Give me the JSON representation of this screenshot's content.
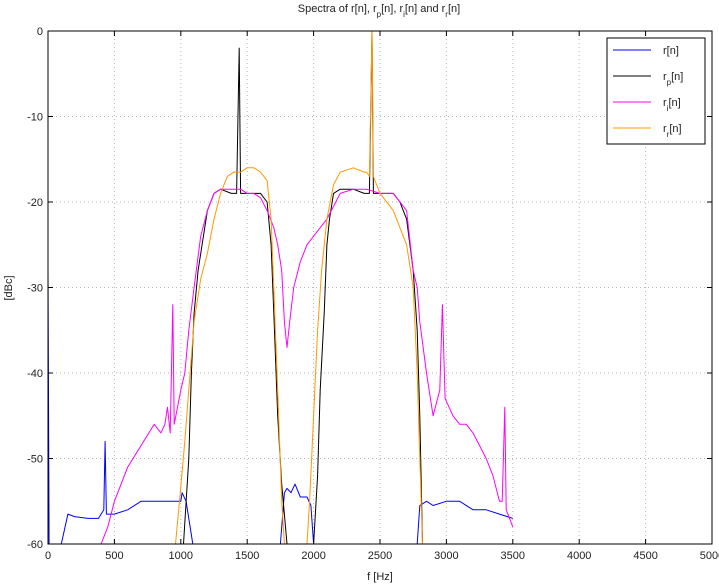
{
  "chart_data": {
    "type": "line",
    "title": "Spectra of r[n], r_p[n], r_i[n] and r_r[n]",
    "xlabel": "f [Hz]",
    "ylabel": "[dBc]",
    "xlim": [
      0,
      5000
    ],
    "ylim": [
      -60,
      0
    ],
    "xticks": [
      0,
      500,
      1000,
      1500,
      2000,
      2500,
      3000,
      3500,
      4000,
      4500,
      5000
    ],
    "yticks": [
      0,
      -10,
      -20,
      -30,
      -40,
      -50,
      -60
    ],
    "grid": true,
    "legend_position": "top-right",
    "series": [
      {
        "name": "r[n]",
        "color": "#0000ff",
        "points": [
          [
            0,
            -28
          ],
          [
            8,
            -60
          ],
          [
            100,
            -60
          ],
          [
            150,
            -56.5
          ],
          [
            200,
            -56.8
          ],
          [
            300,
            -57
          ],
          [
            380,
            -57
          ],
          [
            420,
            -56
          ],
          [
            430,
            -48
          ],
          [
            440,
            -56.5
          ],
          [
            500,
            -56.5
          ],
          [
            600,
            -56
          ],
          [
            700,
            -55
          ],
          [
            800,
            -55
          ],
          [
            900,
            -55
          ],
          [
            960,
            -55
          ],
          [
            1000,
            -55
          ],
          [
            1010,
            -54
          ],
          [
            1040,
            -55
          ],
          [
            1090,
            -60
          ],
          [
            1750,
            -60
          ],
          [
            1780,
            -54
          ],
          [
            1800,
            -53.5
          ],
          [
            1830,
            -54
          ],
          [
            1860,
            -53
          ],
          [
            1900,
            -54.5
          ],
          [
            1950,
            -54.5
          ],
          [
            1980,
            -55.5
          ],
          [
            2000,
            -60
          ],
          [
            2780,
            -60
          ],
          [
            2800,
            -55.5
          ],
          [
            2850,
            -55
          ],
          [
            2900,
            -55.5
          ],
          [
            3000,
            -55
          ],
          [
            3100,
            -55
          ],
          [
            3200,
            -56
          ],
          [
            3300,
            -56
          ],
          [
            3400,
            -56.5
          ],
          [
            3500,
            -57
          ]
        ]
      },
      {
        "name": "r_p[n]",
        "color": "#000000",
        "points": [
          [
            1020,
            -60
          ],
          [
            1060,
            -50
          ],
          [
            1080,
            -40
          ],
          [
            1100,
            -33
          ],
          [
            1130,
            -28
          ],
          [
            1200,
            -21
          ],
          [
            1250,
            -19
          ],
          [
            1300,
            -18.5
          ],
          [
            1380,
            -19
          ],
          [
            1420,
            -19
          ],
          [
            1440,
            -2
          ],
          [
            1450,
            -19
          ],
          [
            1500,
            -19
          ],
          [
            1550,
            -19
          ],
          [
            1600,
            -19
          ],
          [
            1650,
            -20
          ],
          [
            1680,
            -25
          ],
          [
            1700,
            -33
          ],
          [
            1730,
            -45
          ],
          [
            1760,
            -53
          ],
          [
            1800,
            -60
          ],
          [
            2000,
            -60
          ],
          [
            2030,
            -52
          ],
          [
            2050,
            -42
          ],
          [
            2080,
            -33
          ],
          [
            2100,
            -25
          ],
          [
            2120,
            -22
          ],
          [
            2150,
            -19
          ],
          [
            2200,
            -18.5
          ],
          [
            2300,
            -18.5
          ],
          [
            2380,
            -19
          ],
          [
            2420,
            -19
          ],
          [
            2440,
            0
          ],
          [
            2450,
            -19
          ],
          [
            2500,
            -19
          ],
          [
            2600,
            -19
          ],
          [
            2650,
            -20
          ],
          [
            2700,
            -22
          ],
          [
            2750,
            -28
          ],
          [
            2780,
            -35
          ],
          [
            2800,
            -45
          ],
          [
            2820,
            -60
          ]
        ]
      },
      {
        "name": "r_i[n]",
        "color": "#ff00ff",
        "points": [
          [
            400,
            -60
          ],
          [
            450,
            -58
          ],
          [
            500,
            -55
          ],
          [
            600,
            -51
          ],
          [
            700,
            -48.5
          ],
          [
            800,
            -46
          ],
          [
            850,
            -47
          ],
          [
            880,
            -46
          ],
          [
            900,
            -44
          ],
          [
            920,
            -47
          ],
          [
            940,
            -32
          ],
          [
            950,
            -46
          ],
          [
            1000,
            -42
          ],
          [
            1030,
            -40
          ],
          [
            1060,
            -35
          ],
          [
            1100,
            -30
          ],
          [
            1150,
            -24
          ],
          [
            1200,
            -21
          ],
          [
            1250,
            -19
          ],
          [
            1300,
            -18.5
          ],
          [
            1400,
            -18.5
          ],
          [
            1450,
            -18.5
          ],
          [
            1500,
            -19
          ],
          [
            1550,
            -19
          ],
          [
            1600,
            -19.5
          ],
          [
            1650,
            -21
          ],
          [
            1700,
            -23
          ],
          [
            1730,
            -25
          ],
          [
            1760,
            -28
          ],
          [
            1780,
            -34
          ],
          [
            1800,
            -37
          ],
          [
            1820,
            -34
          ],
          [
            1850,
            -30
          ],
          [
            1900,
            -27
          ],
          [
            1950,
            -25
          ],
          [
            2000,
            -24
          ],
          [
            2100,
            -22
          ],
          [
            2200,
            -19
          ],
          [
            2300,
            -18.5
          ],
          [
            2400,
            -18.5
          ],
          [
            2500,
            -19
          ],
          [
            2600,
            -19
          ],
          [
            2700,
            -21
          ],
          [
            2750,
            -28
          ],
          [
            2780,
            -30
          ],
          [
            2800,
            -34
          ],
          [
            2850,
            -40
          ],
          [
            2900,
            -45
          ],
          [
            2950,
            -42
          ],
          [
            2970,
            -32
          ],
          [
            2990,
            -43
          ],
          [
            3050,
            -45
          ],
          [
            3100,
            -46
          ],
          [
            3150,
            -46
          ],
          [
            3200,
            -47
          ],
          [
            3300,
            -50
          ],
          [
            3350,
            -52
          ],
          [
            3400,
            -55
          ],
          [
            3420,
            -55
          ],
          [
            3440,
            -44
          ],
          [
            3450,
            -56
          ],
          [
            3500,
            -58
          ]
        ]
      },
      {
        "name": "r_r[n]",
        "color": "#ff9900",
        "points": [
          [
            960,
            -60
          ],
          [
            990,
            -55
          ],
          [
            1030,
            -48
          ],
          [
            1070,
            -40
          ],
          [
            1100,
            -34
          ],
          [
            1150,
            -29
          ],
          [
            1200,
            -26
          ],
          [
            1250,
            -22
          ],
          [
            1300,
            -19
          ],
          [
            1350,
            -17
          ],
          [
            1400,
            -16.5
          ],
          [
            1440,
            -16.5
          ],
          [
            1450,
            -16.5
          ],
          [
            1500,
            -16
          ],
          [
            1550,
            -16
          ],
          [
            1600,
            -16.5
          ],
          [
            1650,
            -17.5
          ],
          [
            1680,
            -22
          ],
          [
            1700,
            -30
          ],
          [
            1730,
            -42
          ],
          [
            1760,
            -55
          ],
          [
            1780,
            -60
          ],
          [
            1950,
            -60
          ],
          [
            1970,
            -55
          ],
          [
            2000,
            -45
          ],
          [
            2030,
            -35
          ],
          [
            2060,
            -28
          ],
          [
            2100,
            -22
          ],
          [
            2150,
            -18
          ],
          [
            2200,
            -16.5
          ],
          [
            2300,
            -16
          ],
          [
            2380,
            -16.5
          ],
          [
            2400,
            -16.5
          ],
          [
            2420,
            -17
          ],
          [
            2440,
            0
          ],
          [
            2450,
            -17
          ],
          [
            2500,
            -19
          ],
          [
            2600,
            -21
          ],
          [
            2700,
            -25
          ],
          [
            2750,
            -30
          ],
          [
            2780,
            -40
          ],
          [
            2800,
            -50
          ],
          [
            2820,
            -60
          ]
        ]
      }
    ]
  }
}
